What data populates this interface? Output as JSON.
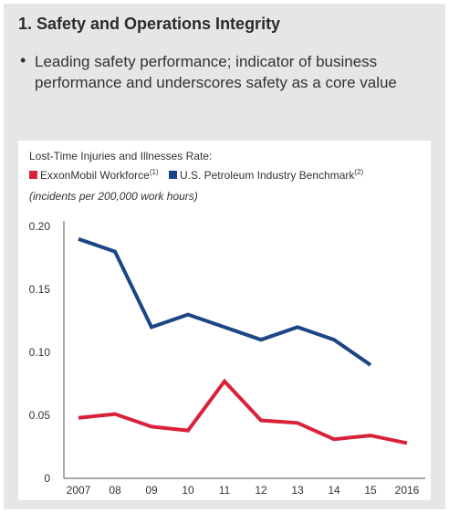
{
  "section": {
    "title": "1. Safety and Operations Integrity",
    "bullet": "Leading safety performance; indicator of business performance and underscores safety as a core value"
  },
  "chart_data": {
    "type": "line",
    "title": "Lost-Time Injuries and Illnesses Rate:",
    "subtitle": "(incidents per 200,000 work hours)",
    "x": [
      "2007",
      "08",
      "09",
      "10",
      "11",
      "12",
      "13",
      "14",
      "15",
      "2016"
    ],
    "y_ticks": [
      "0",
      "0.05",
      "0.10",
      "0.15",
      "0.20"
    ],
    "ylim": [
      0,
      0.2
    ],
    "grid": false,
    "legend_position": "top-left",
    "series": [
      {
        "name": "ExxonMobil Workforce",
        "superscript": "(1)",
        "color": "#d9213a",
        "values": [
          0.048,
          0.051,
          0.041,
          0.038,
          0.077,
          0.046,
          0.044,
          0.031,
          0.034,
          0.028
        ]
      },
      {
        "name": "U.S. Petroleum Industry Benchmark",
        "superscript": "(2)",
        "color": "#1b4586",
        "values": [
          0.19,
          0.18,
          0.12,
          0.13,
          0.12,
          0.11,
          0.12,
          0.11,
          0.09,
          null
        ]
      }
    ]
  }
}
